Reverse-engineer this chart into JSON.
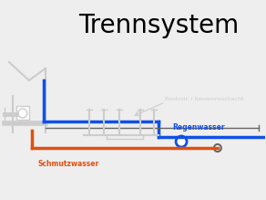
{
  "title": "Trennsystem",
  "title_fontsize": 20,
  "bg_color": "#eeeeee",
  "label_regenwasser": "Regenwasser",
  "label_schmutzwasser": "Schmutzwasser",
  "label_kontroll": "Kontroll- / Revisionsschacht",
  "color_blue": "#1050e8",
  "color_orange": "#e05010",
  "color_gray": "#aaaaaa",
  "color_darkgray": "#666666",
  "color_lightgray": "#cccccc"
}
